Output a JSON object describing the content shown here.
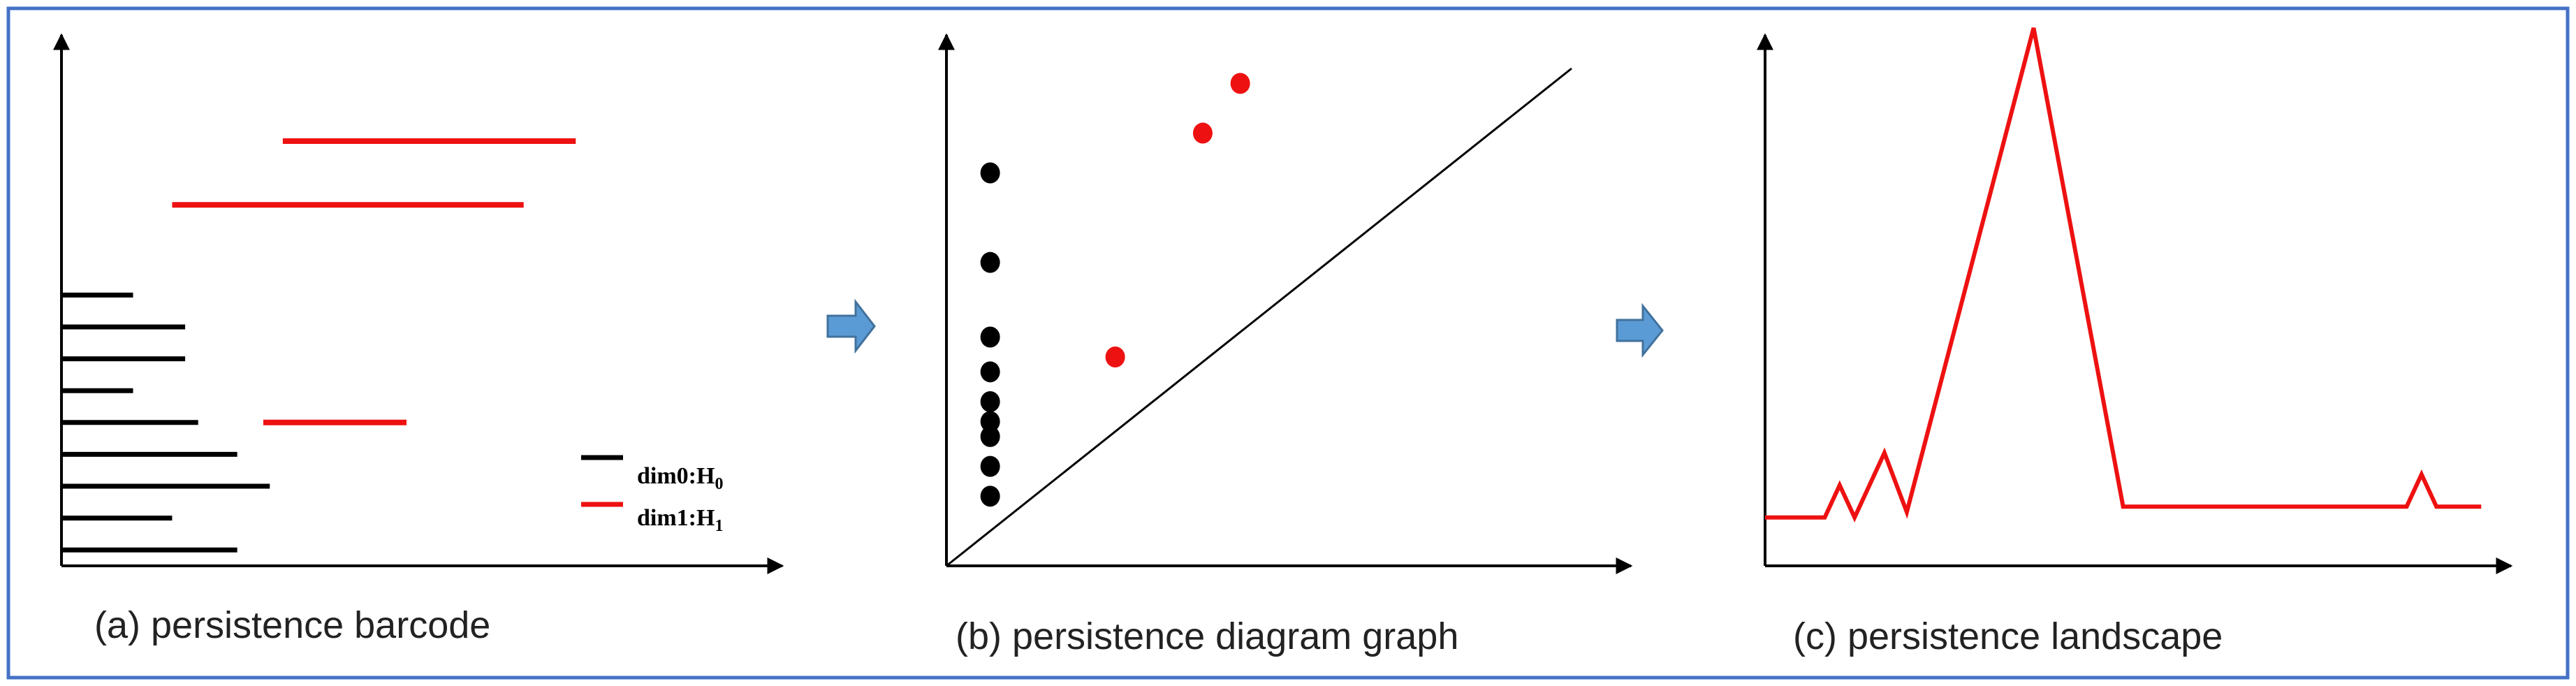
{
  "colors": {
    "frame": "#4472C4",
    "axis": "#000000",
    "h0": "#000000",
    "h1": "#EE1111",
    "arrow_fill": "#5B9BD5",
    "arrow_stroke": "#41719C"
  },
  "panels": [
    {
      "id": "a",
      "caption": "(a) persistence  barcode",
      "legend": [
        {
          "dim": "dim0:H",
          "sub": "0",
          "color": "#000000"
        },
        {
          "dim": "dim1:H",
          "sub": "1",
          "color": "#EE1111"
        }
      ]
    },
    {
      "id": "b",
      "caption": "(b) persistence diagram graph"
    },
    {
      "id": "c",
      "caption": "(c) persistence  landscape"
    }
  ],
  "chart_data": [
    {
      "type": "barcode",
      "title": "(a) persistence  barcode",
      "xlim": [
        0,
        100
      ],
      "ylim": [
        0,
        100
      ],
      "series": [
        {
          "name": "dim0:H0",
          "bars": [
            {
              "birth": 0,
              "death": 27,
              "y": 3
            },
            {
              "birth": 0,
              "death": 17,
              "y": 9
            },
            {
              "birth": 0,
              "death": 32,
              "y": 15
            },
            {
              "birth": 0,
              "death": 27,
              "y": 21
            },
            {
              "birth": 0,
              "death": 21,
              "y": 27
            },
            {
              "birth": 0,
              "death": 11,
              "y": 33
            },
            {
              "birth": 0,
              "death": 19,
              "y": 39
            },
            {
              "birth": 0,
              "death": 19,
              "y": 45
            },
            {
              "birth": 0,
              "death": 11,
              "y": 51
            }
          ]
        },
        {
          "name": "dim1:H1",
          "bars": [
            {
              "birth": 31,
              "death": 53,
              "y": 27
            },
            {
              "birth": 17,
              "death": 71,
              "y": 68
            },
            {
              "birth": 34,
              "death": 79,
              "y": 80
            }
          ]
        }
      ]
    },
    {
      "type": "scatter",
      "title": "(b) persistence diagram graph",
      "xlim": [
        0,
        100
      ],
      "ylim": [
        0,
        100
      ],
      "diagonal": true,
      "series": [
        {
          "name": "H0",
          "points": [
            [
              7,
              14
            ],
            [
              7,
              20
            ],
            [
              7,
              26
            ],
            [
              7,
              29
            ],
            [
              7,
              33
            ],
            [
              7,
              39
            ],
            [
              7,
              46
            ],
            [
              7,
              61
            ],
            [
              7,
              79
            ]
          ]
        },
        {
          "name": "H1",
          "points": [
            [
              27,
              42
            ],
            [
              41,
              87
            ],
            [
              47,
              97
            ]
          ]
        }
      ]
    },
    {
      "type": "line",
      "title": "(c) persistence  landscape",
      "xlim": [
        0,
        100
      ],
      "ylim": [
        0,
        100
      ],
      "x": [
        0,
        8,
        10,
        12,
        16,
        19,
        36,
        48,
        86,
        88,
        90,
        92,
        96
      ],
      "y": [
        9,
        9,
        15,
        9,
        21,
        10,
        100,
        11,
        11,
        17,
        11,
        11,
        11
      ]
    }
  ]
}
